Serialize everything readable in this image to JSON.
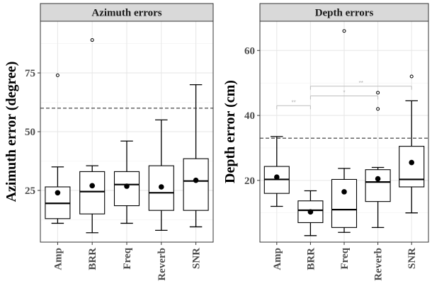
{
  "chart_data": [
    {
      "type": "boxplot",
      "title": "Azimuth errors",
      "xlabel": "",
      "ylabel": "Azimuth error (degree)",
      "categories": [
        "Amp",
        "BRR",
        "Freq",
        "Reverb",
        "SNR"
      ],
      "ylim": [
        3,
        97
      ],
      "yticks": [
        25,
        50,
        75
      ],
      "reference_line": 60,
      "grid": true,
      "boxes": [
        {
          "category": "Amp",
          "whisker_low": 11,
          "q1": 13,
          "median": 19.5,
          "q3": 26.5,
          "whisker_high": 35,
          "mean": 24,
          "outliers": [
            74
          ]
        },
        {
          "category": "BRR",
          "whisker_low": 7,
          "q1": 15,
          "median": 24.5,
          "q3": 33,
          "whisker_high": 35.5,
          "mean": 27,
          "outliers": [
            89
          ]
        },
        {
          "category": "Freq",
          "whisker_low": 11,
          "q1": 18.5,
          "median": 27.5,
          "q3": 33,
          "whisker_high": 46,
          "mean": 26.8,
          "outliers": []
        },
        {
          "category": "Reverb",
          "whisker_low": 8,
          "q1": 16.5,
          "median": 24,
          "q3": 35.5,
          "whisker_high": 55,
          "mean": 26.5,
          "outliers": []
        },
        {
          "category": "SNR",
          "whisker_low": 9.5,
          "q1": 16.5,
          "median": 29,
          "q3": 38.5,
          "whisker_high": 70,
          "mean": 29.3,
          "outliers": []
        }
      ]
    },
    {
      "type": "boxplot",
      "title": "Depth errors",
      "xlabel": "",
      "ylabel": "Depth error (cm)",
      "categories": [
        "Amp",
        "BRR",
        "Freq",
        "Reverb",
        "SNR"
      ],
      "ylim": [
        1,
        69
      ],
      "yticks": [
        20,
        40,
        60
      ],
      "reference_line": 33,
      "grid": true,
      "boxes": [
        {
          "category": "Amp",
          "whisker_low": 12,
          "q1": 16,
          "median": 20.3,
          "q3": 24.3,
          "whisker_high": 33.5,
          "mean": 21,
          "outliers": []
        },
        {
          "category": "BRR",
          "whisker_low": 3,
          "q1": 7,
          "median": 10.8,
          "q3": 13.7,
          "whisker_high": 16.8,
          "mean": 10.3,
          "outliers": []
        },
        {
          "category": "Freq",
          "whisker_low": 4,
          "q1": 5.5,
          "median": 11,
          "q3": 20.3,
          "whisker_high": 23.7,
          "mean": 16.5,
          "outliers": [
            66
          ]
        },
        {
          "category": "Reverb",
          "whisker_low": 5.5,
          "q1": 13.5,
          "median": 19.5,
          "q3": 23.3,
          "whisker_high": 24,
          "mean": 20.5,
          "outliers": [
            42,
            47
          ]
        },
        {
          "category": "SNR",
          "whisker_low": 10,
          "q1": 18,
          "median": 20.3,
          "q3": 30.5,
          "whisker_high": 44.5,
          "mean": 25.5,
          "outliers": [
            52
          ]
        }
      ],
      "significance": [
        {
          "from": "Amp",
          "to": "BRR",
          "y": 43,
          "label": "**"
        },
        {
          "from": "BRR",
          "to": "Reverb",
          "y": 46,
          "label": "*"
        },
        {
          "from": "BRR",
          "to": "SNR",
          "y": 49,
          "label": "**"
        }
      ]
    }
  ]
}
